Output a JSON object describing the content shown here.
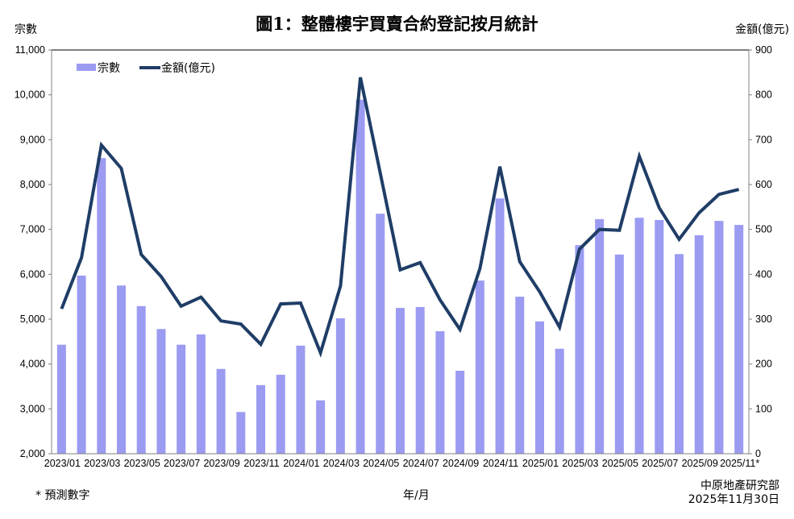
{
  "header": {
    "title": "圖1：整體樓宇買賣合約登記按月統計",
    "left_axis_label": "宗數",
    "right_axis_label": "金額(億元)"
  },
  "footer": {
    "note": "* 預測數字",
    "x_axis_label": "年/月",
    "source_line1": "中原地產研究部",
    "source_line2": "2025年11月30日"
  },
  "colors": {
    "bar": "#9b9bf2",
    "line": "#1f3d66",
    "axis": "#808080"
  },
  "chart_data": {
    "type": "bar+line",
    "title": "圖1：整體樓宇買賣合約登記按月統計",
    "xlabel": "年/月",
    "ylabel": "宗數",
    "y2label": "金額(億元)",
    "ylim": [
      2000,
      11000
    ],
    "y2lim": [
      0,
      900
    ],
    "yticks": [
      2000,
      3000,
      4000,
      5000,
      6000,
      7000,
      8000,
      9000,
      10000,
      11000
    ],
    "ytick_labels": [
      "2,000",
      "3,000",
      "4,000",
      "5,000",
      "6,000",
      "7,000",
      "8,000",
      "9,000",
      "10,000",
      "11,000"
    ],
    "y2ticks": [
      0,
      100,
      200,
      300,
      400,
      500,
      600,
      700,
      800,
      900
    ],
    "grid": false,
    "legend_position": "top-left (inside)",
    "legend": [
      "宗數",
      "金額(億元)"
    ],
    "categories": [
      "2023/01",
      "2023/02",
      "2023/03",
      "2023/04",
      "2023/05",
      "2023/06",
      "2023/07",
      "2023/08",
      "2023/09",
      "2023/10",
      "2023/11",
      "2023/12",
      "2024/01",
      "2024/02",
      "2024/03",
      "2024/04",
      "2024/05",
      "2024/06",
      "2024/07",
      "2024/08",
      "2024/09",
      "2024/10",
      "2024/11",
      "2024/12",
      "2025/01",
      "2025/02",
      "2025/03",
      "2025/04",
      "2025/05",
      "2025/06",
      "2025/07",
      "2025/08",
      "2025/09",
      "2025/10",
      "2025/11*"
    ],
    "xtick_labels": [
      "2023/01",
      "2023/03",
      "2023/05",
      "2023/07",
      "2023/09",
      "2023/11",
      "2024/01",
      "2024/03",
      "2024/05",
      "2024/07",
      "2024/09",
      "2024/11",
      "2025/01",
      "2025/03",
      "2025/05",
      "2025/07",
      "2025/09",
      "2025/11*"
    ],
    "annotation": "* 預測數字",
    "series": [
      {
        "name": "宗數",
        "type": "bar",
        "axis": "left",
        "values": [
          4430,
          5970,
          8590,
          5750,
          5290,
          4780,
          4430,
          4660,
          3890,
          2930,
          3530,
          3760,
          4410,
          3190,
          5020,
          9890,
          7350,
          5250,
          5270,
          4730,
          3850,
          5860,
          7690,
          5500,
          4950,
          4340,
          6650,
          7230,
          6440,
          7260,
          7210,
          6450,
          6870,
          7190,
          7100
        ]
      },
      {
        "name": "金額(億元)",
        "type": "line",
        "axis": "right",
        "values": [
          323,
          437,
          688,
          636,
          444,
          395,
          329,
          349,
          296,
          289,
          244,
          334,
          336,
          225,
          374,
          839,
          625,
          410,
          426,
          343,
          277,
          413,
          640,
          428,
          361,
          282,
          456,
          500,
          498,
          663,
          548,
          478,
          537,
          578,
          589
        ]
      }
    ]
  }
}
